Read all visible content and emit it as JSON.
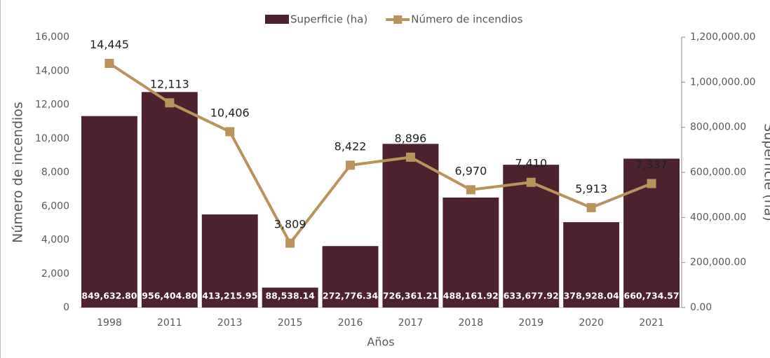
{
  "chart_data": {
    "type": "combo",
    "categories": [
      "1998",
      "2011",
      "2013",
      "2015",
      "2016",
      "2017",
      "2018",
      "2019",
      "2020",
      "2021"
    ],
    "series": [
      {
        "name": "Superficie (ha)",
        "type": "bar",
        "axis": "y2",
        "color": "#4b222e",
        "values": [
          849632.8,
          956404.8,
          413215.95,
          88538.14,
          272776.34,
          726361.21,
          488161.92,
          633677.92,
          378928.04,
          660734.57
        ],
        "value_labels": [
          "849,632.80",
          "956,404.80",
          "413,215.95",
          "88,538.14",
          "272,776.34",
          "726,361.21",
          "488,161.92",
          "633,677.92",
          "378,928.04",
          "660,734.57"
        ]
      },
      {
        "name": "Número de incendios",
        "type": "line",
        "color": "#b8935e",
        "values": [
          14445,
          12113,
          10406,
          3809,
          8422,
          8896,
          6970,
          7410,
          5913,
          7337
        ],
        "value_labels": [
          "14,445",
          "12,113",
          "10,406",
          "3,809",
          "8,422",
          "8,896",
          "6,970",
          "7,410",
          "5,913",
          "7,337"
        ]
      }
    ],
    "xlabel": "Años",
    "ylabel": "Número de incendios",
    "y2label": "Superficie (ha)",
    "ylim": [
      0,
      16000
    ],
    "yticks": [
      0,
      {
        "value": 2000,
        "label": "2,000"
      },
      {
        "value": 4000,
        "label": "4,000"
      },
      {
        "value": 6000,
        "label": "6,000"
      },
      {
        "value": 8000,
        "label": "8,000"
      },
      {
        "value": 10000,
        "label": "10,000"
      },
      {
        "value": 12000,
        "label": "12,000"
      },
      {
        "value": 14000,
        "label": "14,000"
      },
      {
        "value": 16000,
        "label": "16,000"
      }
    ],
    "y2lim": [
      0,
      1200000
    ],
    "y2ticks": [
      {
        "value": 0,
        "label": "0.00"
      },
      {
        "value": 200000,
        "label": "200,000.00"
      },
      {
        "value": 400000,
        "label": "400,000.00"
      },
      {
        "value": 600000,
        "label": "600,000.00"
      },
      {
        "value": 800000,
        "label": "800,000.00"
      },
      {
        "value": 1000000,
        "label": "1,000,000.00"
      },
      {
        "value": 1200000,
        "label": "1,200,000.00"
      }
    ],
    "legend": "top"
  }
}
